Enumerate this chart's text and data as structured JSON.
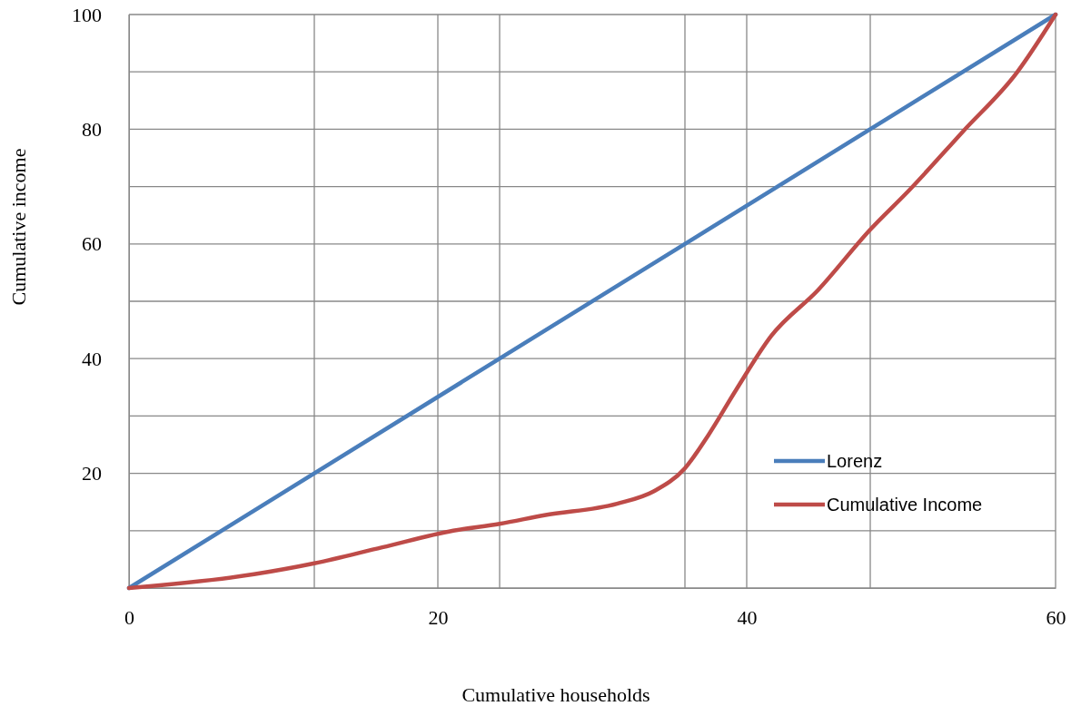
{
  "chart_data": {
    "type": "line",
    "xlabel": "Cumulative households",
    "ylabel": "Cumulative income",
    "xlim": [
      0,
      60
    ],
    "ylim": [
      0,
      100
    ],
    "xticks": [
      0,
      {
        "value": 12,
        "label": null
      },
      20,
      {
        "value": 24,
        "label": null
      },
      {
        "value": 36,
        "label": null
      },
      40,
      {
        "value": 48,
        "label": null
      },
      60
    ],
    "yticks": [
      {
        "value": 0,
        "label": null
      },
      {
        "value": 10,
        "label": null
      },
      20,
      {
        "value": 30,
        "label": null
      },
      40,
      {
        "value": 50,
        "label": null
      },
      60,
      {
        "value": 70,
        "label": null
      },
      80,
      {
        "value": 90,
        "label": null
      },
      100
    ],
    "grid": true,
    "legend": "bottom right",
    "marker": "none",
    "line_style": "solid",
    "series": [
      {
        "name": "Lorenz",
        "color": "#4a7ebb",
        "x": [
          0,
          60
        ],
        "values": [
          0,
          100
        ]
      },
      {
        "name": "Cumulative Income",
        "color": "#be4b48",
        "x": [
          0,
          8.1,
          12,
          16.4,
          21,
          24,
          26.9,
          31.6,
          34,
          36,
          37.5,
          39.3,
          41.6,
          44.6,
          48,
          50.5,
          54,
          57.5,
          60
        ],
        "values": [
          0,
          2.4,
          4.3,
          7.1,
          10,
          11.2,
          12.7,
          14.7,
          16.9,
          20.9,
          26.6,
          34.5,
          44,
          51.9,
          62.5,
          69.3,
          79.6,
          89.9,
          100
        ]
      }
    ]
  }
}
